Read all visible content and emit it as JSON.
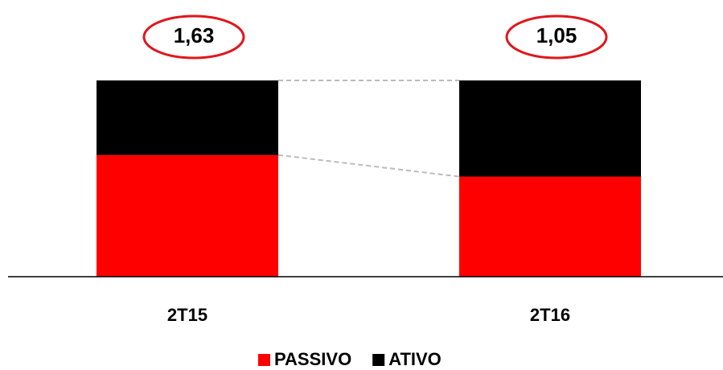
{
  "chart_data": {
    "type": "stacked_bar",
    "categories": [
      "2T15",
      "2T16"
    ],
    "series": [
      {
        "name": "PASSIVO",
        "color": "#ff0000",
        "values": [
          62,
          51
        ]
      },
      {
        "name": "ATIVO",
        "color": "#000000",
        "values": [
          38,
          49
        ]
      }
    ],
    "annotations": [
      "1,63",
      "1,05"
    ],
    "annotation_color": "#e0161b",
    "ylim": [
      0,
      100
    ],
    "legend": "bottom"
  }
}
